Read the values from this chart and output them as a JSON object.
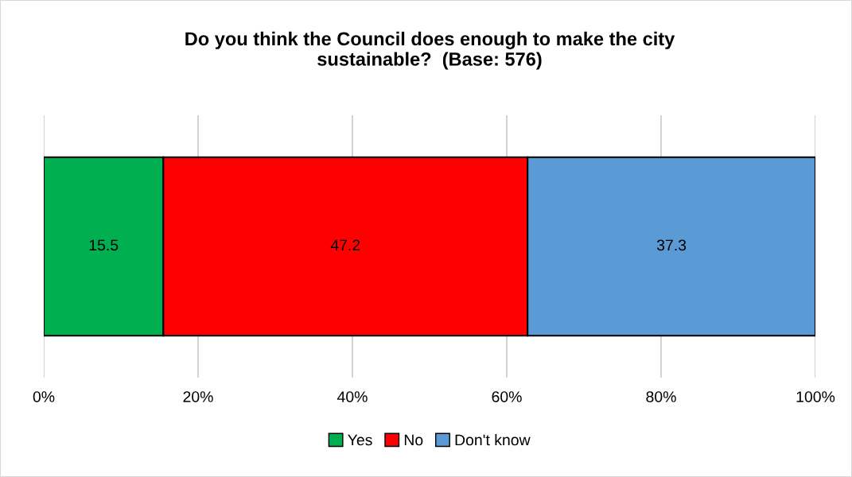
{
  "chart_data": {
    "type": "bar",
    "title": "Do you think the Council does enough to make the city\nsustainable?  (Base: 576)",
    "orientation": "horizontal",
    "stacked": true,
    "categories": [
      null
    ],
    "series": [
      {
        "name": "Yes",
        "color": "#00b050",
        "values": [
          15.5
        ]
      },
      {
        "name": "No",
        "color": "#ff0000",
        "values": [
          47.2
        ]
      },
      {
        "name": "Don't know",
        "color": "#5b9bd5",
        "values": [
          37.3
        ]
      }
    ],
    "xlim": [
      0,
      100
    ],
    "xticks": [
      {
        "value": 0,
        "label": "0%"
      },
      {
        "value": 20,
        "label": "20%"
      },
      {
        "value": 40,
        "label": "40%"
      },
      {
        "value": 60,
        "label": "60%"
      },
      {
        "value": 80,
        "label": "80%"
      },
      {
        "value": 100,
        "label": "100%"
      }
    ],
    "grid": "x",
    "legend": "bottom",
    "data_labels": true,
    "tick_labels": "x"
  }
}
